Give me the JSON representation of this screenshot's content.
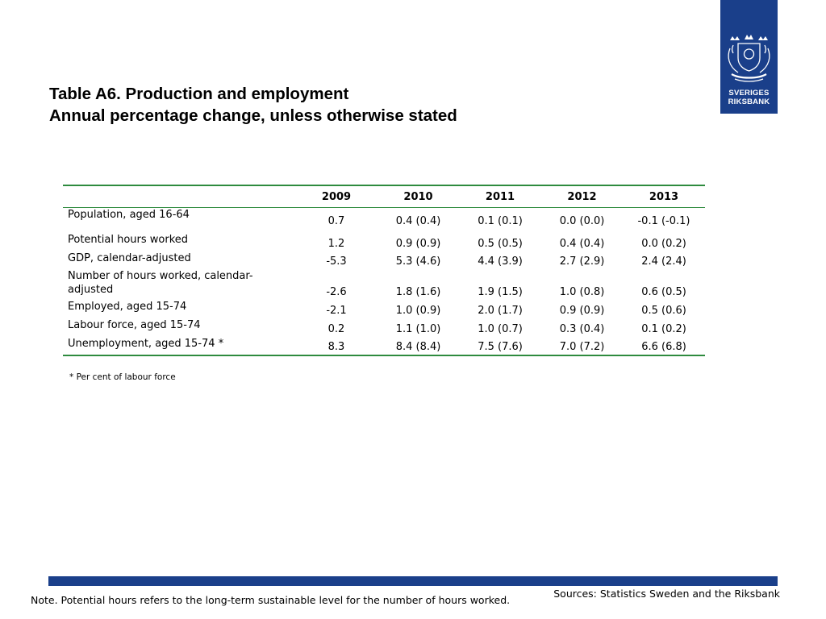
{
  "logo": {
    "line1": "SVERIGES",
    "line2": "RIKSBANK"
  },
  "title": {
    "line1": "Table A6. Production and employment",
    "line2": "Annual percentage change, unless otherwise stated"
  },
  "table": {
    "columns": [
      "",
      "2009",
      "2010",
      "2011",
      "2012",
      "2013"
    ],
    "rows": [
      {
        "label": "Population, aged 16-64",
        "values": [
          "0.7",
          "0.4 (0.4)",
          "0.1 (0.1)",
          "0.0 (0.0)",
          "-0.1 (-0.1)"
        ]
      },
      {
        "label": "Potential hours worked",
        "values": [
          "1.2",
          "0.9 (0.9)",
          "0.5 (0.5)",
          "0.4 (0.4)",
          "0.0 (0.2)"
        ]
      },
      {
        "label": "GDP, calendar-adjusted",
        "values": [
          "-5.3",
          "5.3 (4.6)",
          "4.4 (3.9)",
          "2.7 (2.9)",
          "2.4 (2.4)"
        ]
      },
      {
        "label": "Number of hours worked, calendar-adjusted",
        "values": [
          "-2.6",
          "1.8 (1.6)",
          "1.9 (1.5)",
          "1.0 (0.8)",
          "0.6 (0.5)"
        ]
      },
      {
        "label": "Employed, aged 15-74",
        "values": [
          "-2.1",
          "1.0 (0.9)",
          "2.0 (1.7)",
          "0.9 (0.9)",
          "0.5 (0.6)"
        ]
      },
      {
        "label": "Labour force, aged 15-74",
        "values": [
          "0.2",
          "1.1 (1.0)",
          "1.0 (0.7)",
          "0.3 (0.4)",
          "0.1 (0.2)"
        ]
      },
      {
        "label": "Unemployment, aged 15-74 *",
        "values": [
          "8.3",
          "8.4 (8.4)",
          "7.5 (7.6)",
          "7.0 (7.2)",
          "6.6 (6.8)"
        ]
      }
    ]
  },
  "footnote": "* Per cent of labour force",
  "sources": "Sources: Statistics Sweden and the Riksbank",
  "note": "Note. Potential hours refers to the long-term sustainable level for the number of hours worked.",
  "colors": {
    "brand_blue": "#1a3f8a",
    "rule_green": "#2e8b3e"
  }
}
